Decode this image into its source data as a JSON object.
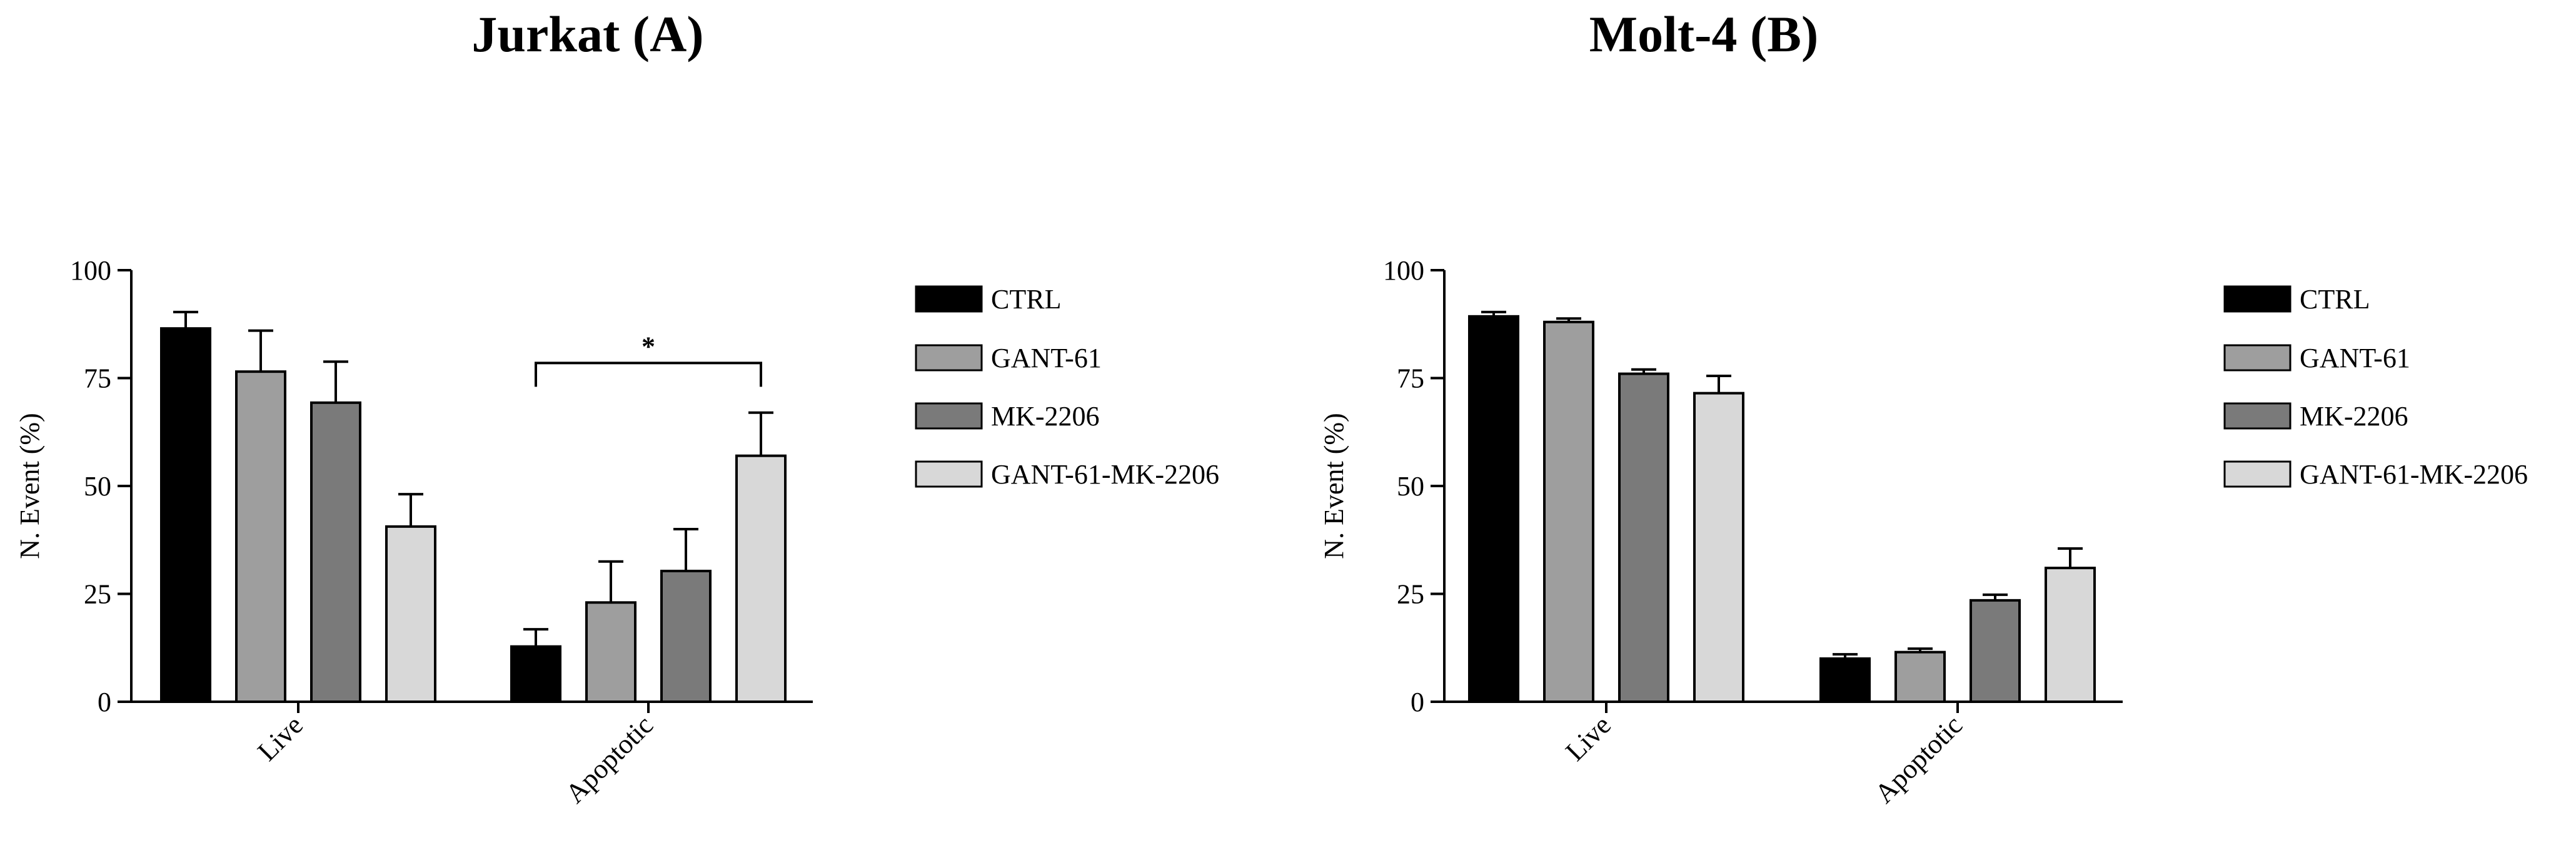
{
  "colors": {
    "CTRL": "#000000",
    "GANT-61": "#9e9e9e",
    "MK-2206": "#7a7a7a",
    "GANT-61-MK-2206": "#d8d8d8"
  },
  "chart_data": [
    {
      "type": "bar",
      "title": "Jurkat (A)",
      "ylabel": "N. Event (%)",
      "xlabel": "",
      "ylim": [
        0,
        100
      ],
      "yticks": [
        "0",
        "25",
        "50",
        "75",
        "100"
      ],
      "categories": [
        "Live",
        "Apoptotic"
      ],
      "series": [
        {
          "name": "CTRL",
          "values": [
            86.5,
            12.8
          ],
          "errors": [
            3.8,
            4.0
          ]
        },
        {
          "name": "GANT-61",
          "values": [
            76.5,
            23.0
          ],
          "errors": [
            9.5,
            9.5
          ]
        },
        {
          "name": "MK-2206",
          "values": [
            69.3,
            30.3
          ],
          "errors": [
            9.5,
            9.7
          ]
        },
        {
          "name": "GANT-61-MK-2206",
          "values": [
            40.6,
            57.0
          ],
          "errors": [
            7.5,
            10.0
          ]
        }
      ],
      "annotations": [
        {
          "text": "*",
          "category": "Apoptotic",
          "from_series": "CTRL",
          "to_series": "GANT-61-MK-2206",
          "bracket_y": 78.5
        }
      ],
      "legend": "right",
      "grid": false
    },
    {
      "type": "bar",
      "title": "Molt-4 (B)",
      "ylabel": "N. Event (%)",
      "xlabel": "",
      "ylim": [
        0,
        100
      ],
      "yticks": [
        "0",
        "25",
        "50",
        "75",
        "100"
      ],
      "categories": [
        "Live",
        "Apoptotic"
      ],
      "series": [
        {
          "name": "CTRL",
          "values": [
            89.3,
            10.0
          ],
          "errors": [
            1.0,
            1.0
          ]
        },
        {
          "name": "GANT-61",
          "values": [
            88.0,
            11.5
          ],
          "errors": [
            0.8,
            0.8
          ]
        },
        {
          "name": "MK-2206",
          "values": [
            76.0,
            23.5
          ],
          "errors": [
            1.0,
            1.3
          ]
        },
        {
          "name": "GANT-61-MK-2206",
          "values": [
            71.5,
            31.0
          ],
          "errors": [
            4.0,
            4.5
          ]
        }
      ],
      "annotations": [],
      "legend": "right",
      "grid": false
    }
  ]
}
